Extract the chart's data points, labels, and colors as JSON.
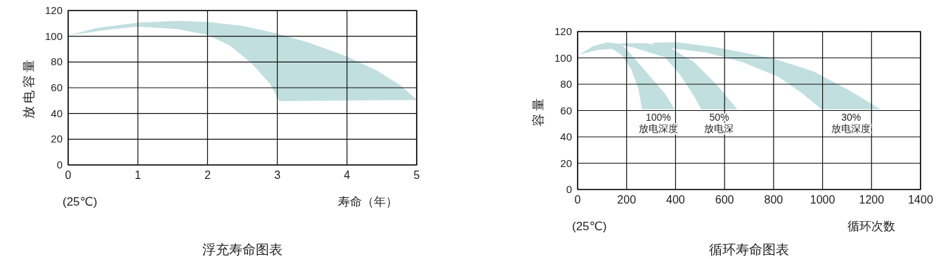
{
  "chart_data": [
    {
      "type": "area",
      "title": "浮充寿命图表",
      "xlabel": "寿命（年）",
      "ylabel": "放电容量",
      "xlim": [
        0,
        5
      ],
      "ylim": [
        0,
        120
      ],
      "xticks": [
        0,
        1,
        2,
        3,
        4,
        5
      ],
      "yticks": [
        0,
        20,
        40,
        60,
        80,
        100,
        120
      ],
      "grid": true,
      "annotations": [
        "(25℃)"
      ],
      "series": [
        {
          "color": "#c2dfe0",
          "x": [
            0,
            0.4,
            1,
            1.55,
            2,
            2.51,
            3,
            3.47,
            4,
            4.43,
            4.78,
            4.99,
            4.99,
            4,
            3.03,
            2.89,
            2.63,
            2.32,
            2,
            1.55,
            1,
            0.59,
            0
          ],
          "values": [
            100.5,
            106.4,
            110.6,
            112,
            111.2,
            108,
            102.2,
            94.8,
            84.3,
            73.4,
            61.3,
            51.2,
            50.4,
            50.1,
            49.7,
            63.4,
            79.1,
            92.7,
            101.1,
            105.7,
            107.4,
            105.3,
            100.5
          ]
        }
      ]
    },
    {
      "type": "area",
      "title": "循环寿命图表",
      "xlabel": "循环次数",
      "ylabel": "容量",
      "xlim": [
        0,
        1400
      ],
      "ylim": [
        0,
        120
      ],
      "xticks": [
        0,
        200,
        400,
        600,
        800,
        1000,
        1200,
        1400
      ],
      "yticks": [
        0,
        20,
        40,
        60,
        80,
        100,
        120
      ],
      "grid": true,
      "annotations": [
        "100%\n放电深度",
        "50%\n放电深",
        "30%\n放电深度",
        "(25℃)"
      ],
      "series": [
        {
          "color": "#c2dfe0",
          "x": [
            7,
            61,
            120,
            179,
            228,
            297,
            356,
            396,
            263,
            248,
            219,
            179,
            140,
            81,
            7
          ],
          "values": [
            102.4,
            108.8,
            111.9,
            110.6,
            100.5,
            85.8,
            73,
            61,
            61,
            76.6,
            91.3,
            102.4,
            107,
            106,
            102.4
          ]
        },
        {
          "color": "#c2dfe0",
          "x": [
            179,
            278,
            376,
            475,
            573,
            652,
            504,
            475,
            416,
            356,
            228,
            179
          ],
          "values": [
            111.2,
            111.2,
            107.9,
            96.9,
            78.5,
            61,
            61,
            71.1,
            87.7,
            100.5,
            107.9,
            109.7
          ]
        },
        {
          "color": "#c2dfe0",
          "x": [
            307,
            406,
            573,
            799,
            967,
            1114,
            1237,
            996,
            918,
            819,
            671,
            524,
            376,
            307
          ],
          "values": [
            111.6,
            111.9,
            107.9,
            99.6,
            89.5,
            74.8,
            61,
            61,
            73,
            85.8,
            96.9,
            104.2,
            107.5,
            109.7
          ]
        }
      ]
    }
  ]
}
